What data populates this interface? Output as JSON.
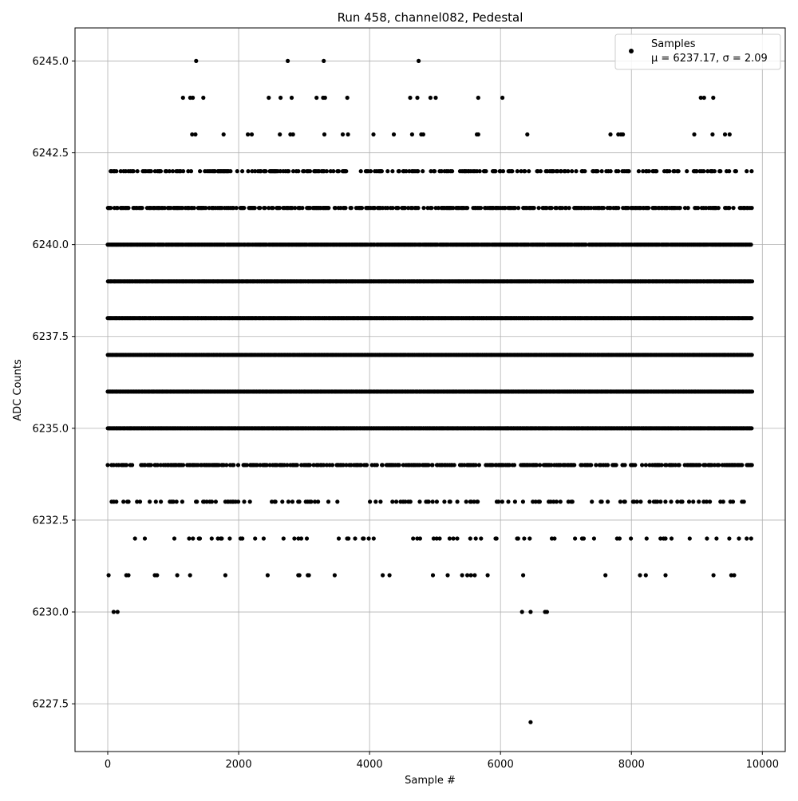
{
  "chart_data": {
    "type": "scatter",
    "title": "Run 458, channel082, Pedestal",
    "xlabel": "Sample #",
    "ylabel": "ADC Counts",
    "xlim": [
      -500,
      10350
    ],
    "ylim": [
      6226.2,
      6245.9
    ],
    "xticks": [
      0,
      2000,
      4000,
      6000,
      8000,
      10000
    ],
    "xtick_labels": [
      "0",
      "2000",
      "4000",
      "6000",
      "8000",
      "10000"
    ],
    "yticks": [
      6227.5,
      6230.0,
      6232.5,
      6235.0,
      6237.5,
      6240.0,
      6242.5,
      6245.0
    ],
    "ytick_labels": [
      "6227.5",
      "6230.0",
      "6232.5",
      "6235.0",
      "6237.5",
      "6240.0",
      "6242.5",
      "6245.0"
    ],
    "grid": true,
    "legend_position": "top-right",
    "marker_color": "#000000",
    "grid_color": "#b0b0b0",
    "series": [
      {
        "name": "Samples",
        "stats_label": "μ = 6237.17, σ = 2.09",
        "x_start": 0,
        "x_end": 9850,
        "levels": [
          {
            "y": 6245,
            "x": [
              1350,
              2750,
              3300,
              4750
            ]
          },
          {
            "y": 6244,
            "x": [
              1150,
              1260,
              1300,
              1460,
              2460,
              2640,
              2810,
              3190,
              3290,
              3320,
              3660,
              4620,
              4730,
              4930,
              5010,
              5660,
              6030,
              9060,
              9110,
              9250
            ]
          },
          {
            "y": 6243,
            "x": [
              1290,
              1340,
              1770,
              2140,
              2200,
              2630,
              2790,
              2830,
              3310,
              3590,
              3670,
              4060,
              4370,
              4650,
              4790,
              4820,
              5640,
              5660,
              6410,
              7680,
              7800,
              7840,
              7870,
              8960,
              9240,
              9430,
              9500
            ]
          },
          {
            "y": 6230,
            "x": [
              90,
              150,
              6330,
              6460,
              6680,
              6710
            ]
          },
          {
            "y": 6227,
            "x": [
              6460
            ]
          }
        ],
        "dense_levels": [
          {
            "y": 6231,
            "density": 0.045
          },
          {
            "y": 6232,
            "density": 0.09
          },
          {
            "y": 6233,
            "density": 0.22
          },
          {
            "y": 6234,
            "density": 0.55
          },
          {
            "y": 6235,
            "density": 1.0
          },
          {
            "y": 6236,
            "density": 1.0
          },
          {
            "y": 6237,
            "density": 1.0
          },
          {
            "y": 6238,
            "density": 1.0
          },
          {
            "y": 6239,
            "density": 1.0
          },
          {
            "y": 6240,
            "density": 0.95
          },
          {
            "y": 6241,
            "density": 0.55
          },
          {
            "y": 6242,
            "density": 0.35
          }
        ]
      }
    ]
  }
}
